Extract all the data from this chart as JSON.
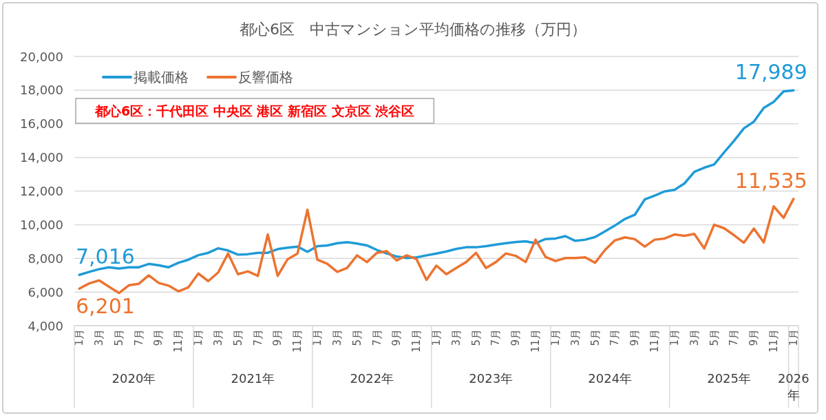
{
  "chart_data": {
    "type": "line",
    "title": "都心6区　中古マンション平均価格の推移（万円）",
    "categories": [
      "1月",
      null,
      "3月",
      null,
      "5月",
      null,
      "7月",
      null,
      "9月",
      null,
      "11月",
      null,
      "1月",
      null,
      "3月",
      null,
      "5月",
      null,
      "7月",
      null,
      "9月",
      null,
      "11月",
      null,
      "1月",
      null,
      "3月",
      null,
      "5月",
      null,
      "7月",
      null,
      "9月",
      null,
      "11月",
      null,
      "1月",
      null,
      "3月",
      null,
      "5月",
      null,
      "7月",
      null,
      "9月",
      null,
      "11月",
      null,
      "1月",
      null,
      "3月",
      null,
      "5月",
      null,
      "7月",
      null,
      "9月",
      null,
      "11月",
      null,
      "1月",
      null,
      "3月",
      null,
      "5月",
      null,
      "7月",
      null,
      "9月",
      null,
      "11月",
      null,
      "1月"
    ],
    "series": [
      {
        "name": "掲載価格",
        "color": "#1f9bd7",
        "values": [
          7016,
          7197,
          7360,
          7470,
          7400,
          7470,
          7470,
          7670,
          7590,
          7470,
          7740,
          7920,
          8190,
          8330,
          8600,
          8470,
          8220,
          8250,
          8330,
          8330,
          8550,
          8630,
          8700,
          8390,
          8730,
          8770,
          8900,
          8960,
          8880,
          8770,
          8500,
          8290,
          8110,
          8020,
          8060,
          8180,
          8290,
          8410,
          8560,
          8660,
          8660,
          8730,
          8820,
          8900,
          8970,
          9010,
          8900,
          9150,
          9180,
          9320,
          9040,
          9110,
          9270,
          9610,
          9950,
          10340,
          10590,
          11500,
          11730,
          11980,
          12070,
          12450,
          13140,
          13390,
          13580,
          14300,
          14980,
          15730,
          16120,
          16940,
          17300,
          17920,
          17989
        ],
        "value_labels": [
          "7,016",
          null,
          null,
          null,
          null,
          null,
          null,
          null,
          null,
          null,
          null,
          null,
          null,
          null,
          null,
          null,
          null,
          null,
          null,
          null,
          null,
          null,
          null,
          null,
          null,
          null,
          null,
          null,
          null,
          null,
          null,
          null,
          null,
          null,
          null,
          null,
          null,
          null,
          null,
          null,
          null,
          null,
          null,
          null,
          null,
          null,
          null,
          null,
          null,
          null,
          null,
          null,
          null,
          null,
          null,
          null,
          null,
          null,
          null,
          null,
          null,
          null,
          null,
          null,
          null,
          null,
          null,
          null,
          null,
          null,
          null,
          null,
          "17,989"
        ]
      },
      {
        "name": "反響価格",
        "color": "#ec7330",
        "values": [
          6201,
          6510,
          6690,
          6310,
          5940,
          6400,
          6490,
          6990,
          6540,
          6380,
          6040,
          6280,
          7100,
          6650,
          7160,
          8290,
          7060,
          7230,
          6960,
          9420,
          6960,
          7950,
          8290,
          10890,
          7920,
          7680,
          7200,
          7430,
          8180,
          7780,
          8330,
          8430,
          7880,
          8180,
          7950,
          6720,
          7570,
          7060,
          7430,
          7780,
          8330,
          7430,
          7780,
          8290,
          8150,
          7780,
          9110,
          8090,
          7840,
          8020,
          8020,
          8060,
          7740,
          8500,
          9070,
          9250,
          9140,
          8700,
          9110,
          9180,
          9420,
          9340,
          9450,
          8590,
          10000,
          9790,
          9380,
          8930,
          9770,
          8950,
          11090,
          10410,
          11535
        ],
        "value_labels": [
          "6,201",
          null,
          null,
          null,
          null,
          null,
          null,
          null,
          null,
          null,
          null,
          null,
          null,
          null,
          null,
          null,
          null,
          null,
          null,
          null,
          null,
          null,
          null,
          null,
          null,
          null,
          null,
          null,
          null,
          null,
          null,
          null,
          null,
          null,
          null,
          null,
          null,
          null,
          null,
          null,
          null,
          null,
          null,
          null,
          null,
          null,
          null,
          null,
          null,
          null,
          null,
          null,
          null,
          null,
          null,
          null,
          null,
          null,
          null,
          null,
          null,
          null,
          null,
          null,
          null,
          null,
          null,
          null,
          null,
          null,
          null,
          null,
          "11,535"
        ]
      }
    ],
    "ylim": [
      4000,
      20000
    ],
    "yticks": [
      {
        "value": 4000,
        "label": "4,000"
      },
      {
        "value": 6000,
        "label": "6,000"
      },
      {
        "value": 8000,
        "label": "8,000"
      },
      {
        "value": 10000,
        "label": "10,000"
      },
      {
        "value": 12000,
        "label": "12,000"
      },
      {
        "value": 14000,
        "label": "14,000"
      },
      {
        "value": 16000,
        "label": "16,000"
      },
      {
        "value": 18000,
        "label": "18,000"
      },
      {
        "value": 20000,
        "label": "20,000"
      }
    ],
    "grid": "y",
    "legend": "top left",
    "annotations": [
      "都心6区：千代田区 中央区 港区 新宿区 文京区 渋谷区",
      "2020年",
      "2021年",
      "2022年",
      "2023年",
      "2024年",
      "2025年",
      "2026年"
    ]
  }
}
